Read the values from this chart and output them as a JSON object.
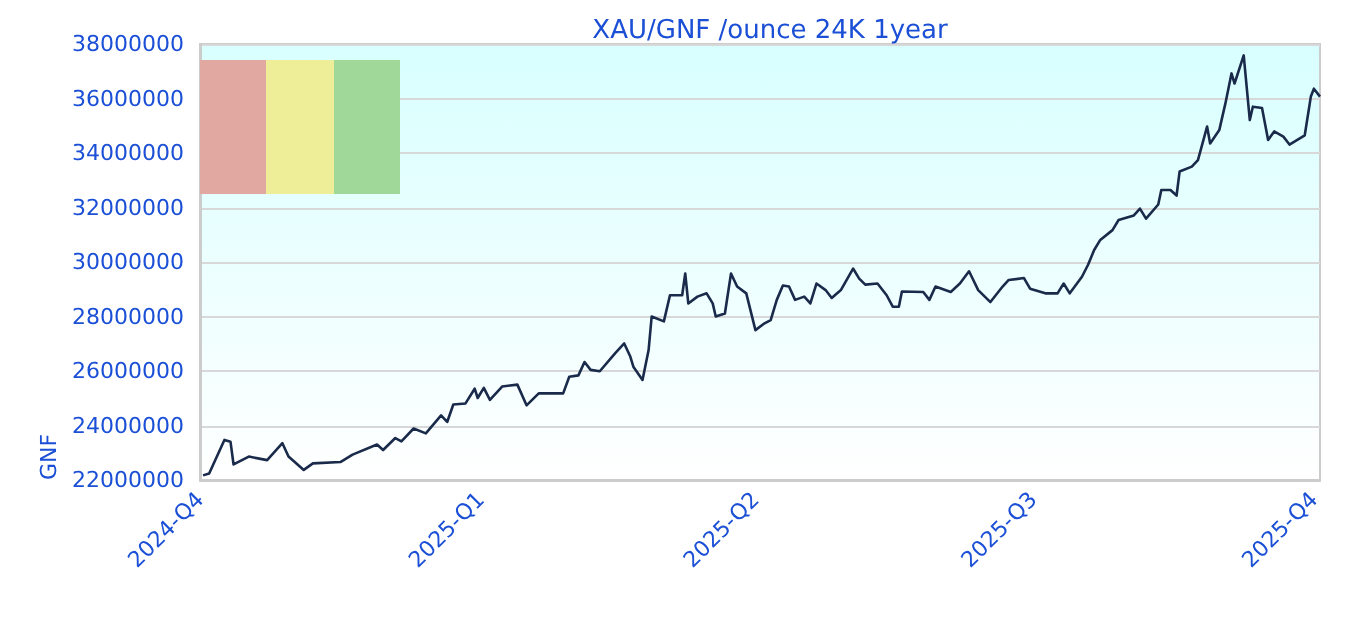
{
  "chart_data": {
    "type": "line",
    "title": "XAU/GNF /ounce 24K 1year",
    "ylabel": "GNF",
    "x": [
      "2024-10-02",
      "2024-10-04",
      "2024-10-09",
      "2024-10-11",
      "2024-10-12",
      "2024-10-17",
      "2024-10-23",
      "2024-10-28",
      "2024-10-30",
      "2024-11-04",
      "2024-11-07",
      "2024-11-16",
      "2024-11-20",
      "2024-11-28",
      "2024-11-30",
      "2024-12-04",
      "2024-12-06",
      "2024-12-10",
      "2024-12-14",
      "2024-12-19",
      "2024-12-21",
      "2024-12-23",
      "2024-12-27",
      "2024-12-30",
      "2024-12-31",
      "2025-01-02",
      "2025-01-04",
      "2025-01-08",
      "2025-01-13",
      "2025-01-16",
      "2025-01-20",
      "2025-01-28",
      "2025-01-30",
      "2025-02-02",
      "2025-02-04",
      "2025-02-06",
      "2025-02-09",
      "2025-02-14",
      "2025-02-17",
      "2025-02-19",
      "2025-02-20",
      "2025-02-23",
      "2025-02-25",
      "2025-02-26",
      "2025-03-02",
      "2025-03-04",
      "2025-03-08",
      "2025-03-09",
      "2025-03-10",
      "2025-03-13",
      "2025-03-16",
      "2025-03-18",
      "2025-03-19",
      "2025-03-22",
      "2025-03-24",
      "2025-03-26",
      "2025-03-29",
      "2025-04-01",
      "2025-04-04",
      "2025-04-06",
      "2025-04-08",
      "2025-04-10",
      "2025-04-12",
      "2025-04-14",
      "2025-04-17",
      "2025-04-19",
      "2025-04-21",
      "2025-04-24",
      "2025-04-26",
      "2025-04-29",
      "2025-05-03",
      "2025-05-05",
      "2025-05-07",
      "2025-05-11",
      "2025-05-14",
      "2025-05-16",
      "2025-05-18",
      "2025-05-19",
      "2025-05-26",
      "2025-05-28",
      "2025-05-30",
      "2025-06-04",
      "2025-06-07",
      "2025-06-10",
      "2025-06-13",
      "2025-06-17",
      "2025-06-21",
      "2025-06-23",
      "2025-06-28",
      "2025-06-30",
      "2025-07-05",
      "2025-07-09",
      "2025-07-11",
      "2025-07-13",
      "2025-07-17",
      "2025-07-19",
      "2025-07-21",
      "2025-07-23",
      "2025-07-27",
      "2025-07-29",
      "2025-08-03",
      "2025-08-05",
      "2025-08-07",
      "2025-08-11",
      "2025-08-12",
      "2025-08-15",
      "2025-08-17",
      "2025-08-18",
      "2025-08-22",
      "2025-08-24",
      "2025-08-27",
      "2025-08-28",
      "2025-08-31",
      "2025-09-02",
      "2025-09-04",
      "2025-09-05",
      "2025-09-08",
      "2025-09-10",
      "2025-09-11",
      "2025-09-14",
      "2025-09-16",
      "2025-09-18",
      "2025-09-21",
      "2025-09-23",
      "2025-09-28",
      "2025-09-30",
      "2025-10-01",
      "2025-10-03"
    ],
    "series": [
      {
        "color": "#1a2a4a",
        "values": [
          22170000,
          22240000,
          23470000,
          23400000,
          22570000,
          22860000,
          22730000,
          23350000,
          22860000,
          22370000,
          22610000,
          22660000,
          22930000,
          23300000,
          23100000,
          23540000,
          23420000,
          23890000,
          23710000,
          24370000,
          24130000,
          24770000,
          24810000,
          25350000,
          25010000,
          25380000,
          24940000,
          25430000,
          25500000,
          24740000,
          25180000,
          25180000,
          25790000,
          25840000,
          26330000,
          26040000,
          25990000,
          26650000,
          27010000,
          26530000,
          26160000,
          25670000,
          26770000,
          28000000,
          27820000,
          28780000,
          28780000,
          29580000,
          28480000,
          28730000,
          28850000,
          28480000,
          28000000,
          28110000,
          29580000,
          29100000,
          28850000,
          27500000,
          27750000,
          27870000,
          28610000,
          29140000,
          29100000,
          28610000,
          28730000,
          28480000,
          29210000,
          28970000,
          28680000,
          28970000,
          29760000,
          29390000,
          29170000,
          29210000,
          28780000,
          28360000,
          28360000,
          28920000,
          28900000,
          28610000,
          29100000,
          28900000,
          29210000,
          29660000,
          28970000,
          28530000,
          29100000,
          29340000,
          29410000,
          29020000,
          28850000,
          28850000,
          29210000,
          28850000,
          29460000,
          29900000,
          30440000,
          30810000,
          31170000,
          31540000,
          31710000,
          31960000,
          31590000,
          32110000,
          32640000,
          32640000,
          32440000,
          33320000,
          33500000,
          33740000,
          34970000,
          34350000,
          34840000,
          35820000,
          36920000,
          36550000,
          37580000,
          35210000,
          35700000,
          35650000,
          34480000,
          34790000,
          34600000,
          34310000,
          34650000,
          36070000,
          36360000,
          36070000
        ]
      }
    ],
    "xlim": [
      "2024-10-01",
      "2025-10-03"
    ],
    "xticks": [
      {
        "value": "2024-10-01",
        "label": "2024-Q4"
      },
      {
        "value": "2025-01-01",
        "label": "2025-Q1"
      },
      {
        "value": "2025-04-01",
        "label": "2025-Q2"
      },
      {
        "value": "2025-07-01",
        "label": "2025-Q3"
      },
      {
        "value": "2025-10-01",
        "label": "2025-Q4"
      }
    ],
    "ylim": [
      22000000,
      38000000
    ],
    "yticks": [
      22000000,
      24000000,
      26000000,
      28000000,
      30000000,
      32000000,
      34000000,
      36000000,
      38000000
    ],
    "grid": "y",
    "marker": "none",
    "line_style": "solid"
  }
}
